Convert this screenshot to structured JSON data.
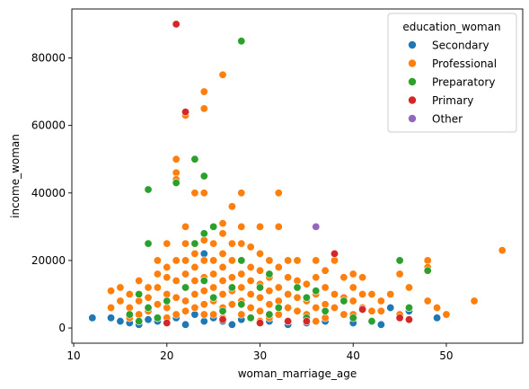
{
  "chart_data": {
    "type": "scatter",
    "title": "",
    "xlabel": "woman_marriage_age",
    "ylabel": "income_woman",
    "xlim": [
      9.8,
      58.2
    ],
    "ylim": [
      -4500,
      94500
    ],
    "xticks": [
      10,
      20,
      30,
      40,
      50
    ],
    "yticks": [
      0,
      20000,
      40000,
      60000,
      80000
    ],
    "ytick_labels": [
      "0",
      "20000",
      "40000",
      "60000",
      "80000"
    ],
    "grid": false,
    "legend": {
      "title": "education_woman",
      "placement": "top-right",
      "entries": [
        "Secondary",
        "Professional",
        "Preparatory",
        "Primary",
        "Other"
      ]
    },
    "series": [
      {
        "name": "Secondary",
        "color": "#1f77b4",
        "points": [
          [
            12,
            3000
          ],
          [
            14,
            3000
          ],
          [
            15,
            2000
          ],
          [
            16,
            1500
          ],
          [
            17,
            1000
          ],
          [
            18,
            2500
          ],
          [
            19,
            2000
          ],
          [
            20,
            1500
          ],
          [
            21,
            3000
          ],
          [
            22,
            1000
          ],
          [
            23,
            4000
          ],
          [
            24,
            2000
          ],
          [
            24,
            22000
          ],
          [
            25,
            3000
          ],
          [
            26,
            2000
          ],
          [
            27,
            1000
          ],
          [
            28,
            2500
          ],
          [
            29,
            3000
          ],
          [
            30,
            1500
          ],
          [
            31,
            2000
          ],
          [
            33,
            1000
          ],
          [
            35,
            1500
          ],
          [
            37,
            2000
          ],
          [
            40,
            1500
          ],
          [
            43,
            1000
          ],
          [
            44,
            6000
          ],
          [
            46,
            5000
          ],
          [
            49,
            3000
          ]
        ]
      },
      {
        "name": "Professional",
        "color": "#ff7f0e",
        "points": [
          [
            14,
            11000
          ],
          [
            14,
            6000
          ],
          [
            15,
            8000
          ],
          [
            15,
            12000
          ],
          [
            16,
            10000
          ],
          [
            16,
            6000
          ],
          [
            16,
            3000
          ],
          [
            17,
            14000
          ],
          [
            17,
            8000
          ],
          [
            17,
            4000
          ],
          [
            18,
            12000
          ],
          [
            18,
            9000
          ],
          [
            18,
            5000
          ],
          [
            19,
            20000
          ],
          [
            19,
            16000
          ],
          [
            19,
            12000
          ],
          [
            19,
            7000
          ],
          [
            19,
            3000
          ],
          [
            20,
            25000
          ],
          [
            20,
            18000
          ],
          [
            20,
            15000
          ],
          [
            20,
            10000
          ],
          [
            20,
            6000
          ],
          [
            20,
            3000
          ],
          [
            21,
            50000
          ],
          [
            21,
            46000
          ],
          [
            21,
            44000
          ],
          [
            21,
            20000
          ],
          [
            21,
            14000
          ],
          [
            21,
            9000
          ],
          [
            21,
            4000
          ],
          [
            22,
            63000
          ],
          [
            22,
            30000
          ],
          [
            22,
            25000
          ],
          [
            22,
            20000
          ],
          [
            22,
            16000
          ],
          [
            22,
            12000
          ],
          [
            22,
            8000
          ],
          [
            22,
            5000
          ],
          [
            23,
            40000
          ],
          [
            23,
            22000
          ],
          [
            23,
            18000
          ],
          [
            23,
            14000
          ],
          [
            23,
            10000
          ],
          [
            23,
            6000
          ],
          [
            24,
            70000
          ],
          [
            24,
            65000
          ],
          [
            24,
            40000
          ],
          [
            24,
            26000
          ],
          [
            24,
            20000
          ],
          [
            24,
            15000
          ],
          [
            24,
            11000
          ],
          [
            24,
            7000
          ],
          [
            24,
            4000
          ],
          [
            25,
            30000
          ],
          [
            25,
            25000
          ],
          [
            25,
            20000
          ],
          [
            25,
            16000
          ],
          [
            25,
            12000
          ],
          [
            25,
            8000
          ],
          [
            25,
            4000
          ],
          [
            26,
            75000
          ],
          [
            26,
            31000
          ],
          [
            26,
            28000
          ],
          [
            26,
            22000
          ],
          [
            26,
            18000
          ],
          [
            26,
            14000
          ],
          [
            26,
            10000
          ],
          [
            26,
            6000
          ],
          [
            26,
            3000
          ],
          [
            27,
            36000
          ],
          [
            27,
            25000
          ],
          [
            27,
            20000
          ],
          [
            27,
            15000
          ],
          [
            27,
            11000
          ],
          [
            27,
            7000
          ],
          [
            28,
            40000
          ],
          [
            28,
            30000
          ],
          [
            28,
            25000
          ],
          [
            28,
            20000
          ],
          [
            28,
            16000
          ],
          [
            28,
            12000
          ],
          [
            28,
            8000
          ],
          [
            28,
            4000
          ],
          [
            29,
            24000
          ],
          [
            29,
            18000
          ],
          [
            29,
            14000
          ],
          [
            29,
            10000
          ],
          [
            29,
            6000
          ],
          [
            30,
            30000
          ],
          [
            30,
            22000
          ],
          [
            30,
            17000
          ],
          [
            30,
            13000
          ],
          [
            30,
            9000
          ],
          [
            30,
            5000
          ],
          [
            30,
            2000
          ],
          [
            31,
            20000
          ],
          [
            31,
            15000
          ],
          [
            31,
            11000
          ],
          [
            31,
            7000
          ],
          [
            31,
            3000
          ],
          [
            32,
            40000
          ],
          [
            32,
            30000
          ],
          [
            32,
            18000
          ],
          [
            32,
            12000
          ],
          [
            32,
            8000
          ],
          [
            32,
            4000
          ],
          [
            33,
            20000
          ],
          [
            33,
            15000
          ],
          [
            33,
            10000
          ],
          [
            33,
            6000
          ],
          [
            33,
            2000
          ],
          [
            34,
            20000
          ],
          [
            34,
            14000
          ],
          [
            34,
            9000
          ],
          [
            34,
            5000
          ],
          [
            35,
            13000
          ],
          [
            35,
            8000
          ],
          [
            35,
            4000
          ],
          [
            36,
            20000
          ],
          [
            36,
            15000
          ],
          [
            36,
            10000
          ],
          [
            36,
            6000
          ],
          [
            36,
            2000
          ],
          [
            37,
            17000
          ],
          [
            37,
            12000
          ],
          [
            37,
            7000
          ],
          [
            37,
            3000
          ],
          [
            38,
            20000
          ],
          [
            38,
            10000
          ],
          [
            38,
            6000
          ],
          [
            39,
            15000
          ],
          [
            39,
            9000
          ],
          [
            39,
            4000
          ],
          [
            40,
            16000
          ],
          [
            40,
            12000
          ],
          [
            40,
            8000
          ],
          [
            40,
            4000
          ],
          [
            41,
            15000
          ],
          [
            41,
            10000
          ],
          [
            41,
            6000
          ],
          [
            42,
            10000
          ],
          [
            42,
            5000
          ],
          [
            43,
            8000
          ],
          [
            43,
            5000
          ],
          [
            44,
            10000
          ],
          [
            45,
            16000
          ],
          [
            45,
            4000
          ],
          [
            46,
            12000
          ],
          [
            46,
            6000
          ],
          [
            48,
            20000
          ],
          [
            48,
            18000
          ],
          [
            48,
            8000
          ],
          [
            49,
            6000
          ],
          [
            50,
            4000
          ],
          [
            53,
            8000
          ],
          [
            56,
            23000
          ]
        ]
      },
      {
        "name": "Preparatory",
        "color": "#2ca02c",
        "points": [
          [
            16,
            4000
          ],
          [
            17,
            2000
          ],
          [
            17,
            10000
          ],
          [
            18,
            41000
          ],
          [
            18,
            25000
          ],
          [
            18,
            6000
          ],
          [
            19,
            3000
          ],
          [
            20,
            8000
          ],
          [
            21,
            43000
          ],
          [
            22,
            12000
          ],
          [
            23,
            50000
          ],
          [
            23,
            25000
          ],
          [
            24,
            45000
          ],
          [
            24,
            28000
          ],
          [
            24,
            14000
          ],
          [
            25,
            30000
          ],
          [
            25,
            9000
          ],
          [
            26,
            5000
          ],
          [
            27,
            12000
          ],
          [
            28,
            85000
          ],
          [
            28,
            20000
          ],
          [
            28,
            7000
          ],
          [
            29,
            3000
          ],
          [
            30,
            12000
          ],
          [
            31,
            16000
          ],
          [
            31,
            4000
          ],
          [
            32,
            6000
          ],
          [
            34,
            12000
          ],
          [
            35,
            9000
          ],
          [
            35,
            3000
          ],
          [
            36,
            11000
          ],
          [
            37,
            5000
          ],
          [
            39,
            8000
          ],
          [
            40,
            3000
          ],
          [
            42,
            2000
          ],
          [
            45,
            20000
          ],
          [
            46,
            6000
          ],
          [
            48,
            17000
          ]
        ]
      },
      {
        "name": "Primary",
        "color": "#d62728",
        "points": [
          [
            20,
            1500
          ],
          [
            21,
            90000
          ],
          [
            22,
            64000
          ],
          [
            26,
            2500
          ],
          [
            30,
            1500
          ],
          [
            33,
            2000
          ],
          [
            35,
            2000
          ],
          [
            38,
            22000
          ],
          [
            41,
            5500
          ],
          [
            45,
            3000
          ],
          [
            46,
            2500
          ]
        ]
      },
      {
        "name": "Other",
        "color": "#9467bd",
        "points": [
          [
            36,
            30000
          ]
        ]
      }
    ]
  }
}
